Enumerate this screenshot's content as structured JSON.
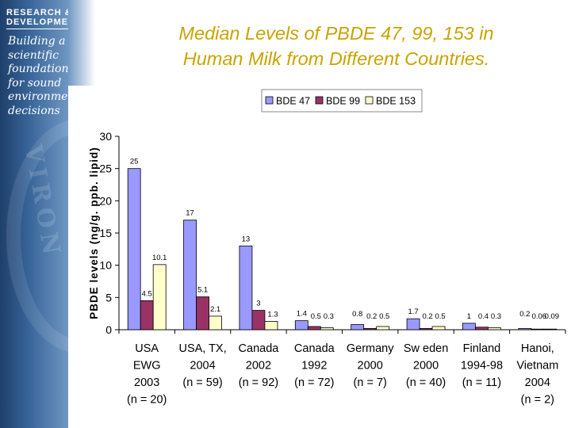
{
  "branding": {
    "line1": "RESEARCH &",
    "line2": "DEVELOPMENT",
    "tagline": [
      "Building a",
      "scientific",
      "foundation",
      "for sound",
      "environment",
      "decisions"
    ]
  },
  "slide": {
    "title_line1": "Median Levels of PBDE 47, 99, 153 in",
    "title_line2": "Human Milk from Different Countries."
  },
  "chart_data": {
    "type": "bar",
    "title": "",
    "xlabel": "",
    "ylabel": "PBDE levels (ng/g. ppb. lipid)",
    "ylim": [
      0,
      30
    ],
    "yticks": [
      0,
      5,
      10,
      15,
      20,
      25,
      30
    ],
    "grid": false,
    "legend_position": "top",
    "categories": [
      [
        "USA",
        "EWG",
        "2003",
        "(n = 20)"
      ],
      [
        "USA, TX,",
        "2004",
        "(n = 59)"
      ],
      [
        "Canada",
        "2002",
        "(n = 92)"
      ],
      [
        "Canada",
        "1992",
        "(n = 72)"
      ],
      [
        "Germany",
        "2000",
        "(n = 7)"
      ],
      [
        "Sw eden",
        "2000",
        "(n = 40)"
      ],
      [
        "Finland",
        "1994-98",
        "(n = 11)"
      ],
      [
        "Hanoi,",
        "Vietnam",
        "2004",
        "(n = 2)"
      ]
    ],
    "series": [
      {
        "name": "BDE 47",
        "color": "#9999ff",
        "values": [
          25,
          17,
          13,
          1.4,
          0.8,
          1.7,
          1,
          0.2
        ],
        "labels": [
          "25",
          "17",
          "13",
          "1.4",
          "0.8",
          "1.7",
          "1",
          "0.2"
        ]
      },
      {
        "name": "BDE 99",
        "color": "#993366",
        "values": [
          4.5,
          5.1,
          3,
          0.5,
          0.2,
          0.2,
          0.4,
          0.06
        ],
        "labels": [
          "4.5",
          "5.1",
          "3",
          "0.5",
          "0.2",
          "0.2",
          "0.4",
          "0.06"
        ]
      },
      {
        "name": "BDE 153",
        "color": "#ffffcc",
        "values": [
          10.1,
          2.1,
          1.3,
          0.3,
          0.5,
          0.5,
          0.3,
          0.09
        ],
        "labels": [
          "10.1",
          "2.1",
          "1.3",
          "0.3",
          "0.5",
          "0.5",
          "0.3",
          "0.09"
        ]
      }
    ]
  }
}
